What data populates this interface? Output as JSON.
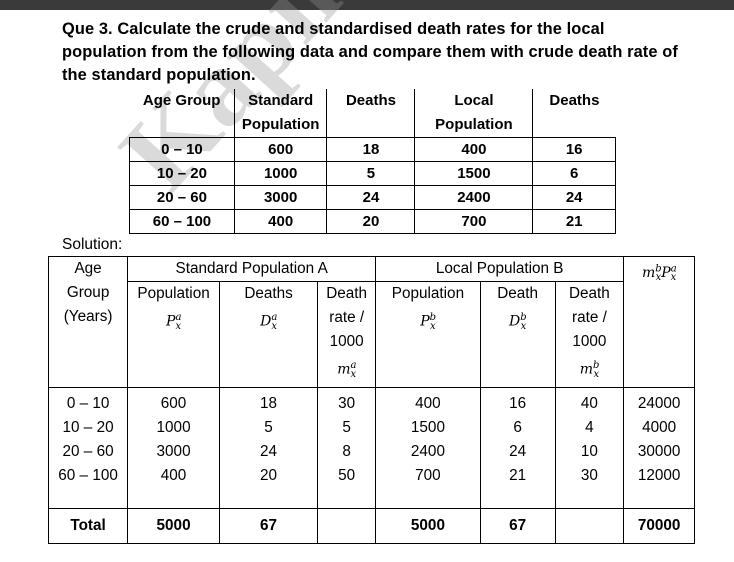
{
  "question": {
    "text": "Que 3. Calculate the crude and standardised death rates for the local population from the following data and compare them with crude death rate of the standard population."
  },
  "watermark": "Kapil Ku",
  "question_table": {
    "headers": [
      "Age Group",
      "Standard Population",
      "Deaths",
      "Local Population",
      "Deaths"
    ],
    "rows": [
      [
        "0 – 10",
        "600",
        "18",
        "400",
        "16"
      ],
      [
        "10 – 20",
        "1000",
        "5",
        "1500",
        "6"
      ],
      [
        "20 – 60",
        "3000",
        "24",
        "2400",
        "24"
      ],
      [
        "60 – 100",
        "400",
        "20",
        "700",
        "21"
      ]
    ]
  },
  "solution_label": "Solution:",
  "solution_table": {
    "age_header": "Age Group (Years)",
    "group_a": "Standard Population A",
    "group_b": "Local Population B",
    "product_header": "m",
    "col_headers": {
      "pop_a": "Population",
      "deaths_a": "Deaths",
      "rate_a": "Death rate / 1000",
      "pop_b": "Population",
      "death_b": "Death",
      "rate_b": "Death rate / 1000"
    },
    "symbols": {
      "pop_a": "P",
      "deaths_a": "D",
      "rate_a": "m",
      "pop_b": "P",
      "deaths_b": "D",
      "rate_b": "m"
    },
    "ages": [
      "0 – 10",
      "10 – 20",
      "20 – 60",
      "60 – 100"
    ],
    "pop_a": [
      "600",
      "1000",
      "3000",
      "400"
    ],
    "deaths_a": [
      "18",
      "5",
      "24",
      "20"
    ],
    "rate_a": [
      "30",
      "5",
      "8",
      "50"
    ],
    "pop_b": [
      "400",
      "1500",
      "2400",
      "700"
    ],
    "deaths_b": [
      "16",
      "6",
      "24",
      "21"
    ],
    "rate_b": [
      "40",
      "4",
      "10",
      "30"
    ],
    "product": [
      "24000",
      "4000",
      "30000",
      "12000"
    ],
    "total": {
      "label": "Total",
      "pop_a": "5000",
      "deaths_a": "67",
      "pop_b": "5000",
      "deaths_b": "67",
      "product": "70000"
    }
  }
}
